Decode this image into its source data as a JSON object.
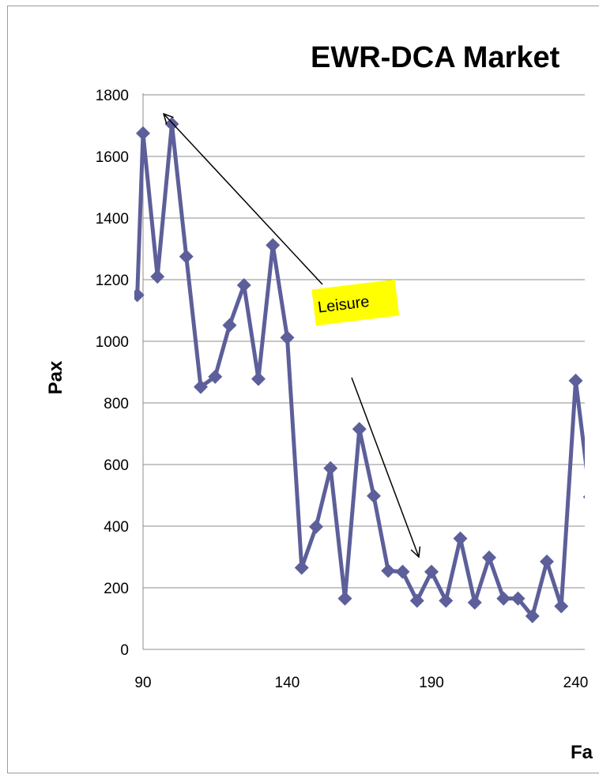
{
  "chart_data": {
    "type": "line",
    "title": "EWR-DCA Market",
    "xlabel": "Fa",
    "ylabel": "Pax",
    "xlim": [
      90,
      245
    ],
    "ylim": [
      0,
      1800
    ],
    "x_ticks": [
      "90",
      "140",
      "190",
      "240"
    ],
    "y_ticks": [
      "0",
      "200",
      "400",
      "600",
      "800",
      "1000",
      "1200",
      "1400",
      "1600",
      "1800"
    ],
    "grid": "horizontal",
    "series": [
      {
        "color": "#5d5f9a",
        "marker": "diamond",
        "points": [
          [
            88,
            1150
          ],
          [
            90,
            1675
          ],
          [
            95,
            1210
          ],
          [
            100,
            1705
          ],
          [
            105,
            1275
          ],
          [
            110,
            852
          ],
          [
            115,
            885
          ],
          [
            120,
            1052
          ],
          [
            125,
            1182
          ],
          [
            130,
            878
          ],
          [
            135,
            1312
          ],
          [
            140,
            1012
          ],
          [
            145,
            265
          ],
          [
            150,
            398
          ],
          [
            155,
            588
          ],
          [
            160,
            165
          ],
          [
            165,
            715
          ],
          [
            170,
            498
          ],
          [
            175,
            255
          ],
          [
            180,
            252
          ],
          [
            185,
            158
          ],
          [
            190,
            252
          ],
          [
            195,
            158
          ],
          [
            200,
            360
          ],
          [
            205,
            152
          ],
          [
            210,
            298
          ],
          [
            215,
            165
          ],
          [
            220,
            165
          ],
          [
            225,
            108
          ],
          [
            230,
            285
          ],
          [
            235,
            140
          ],
          [
            240,
            872
          ],
          [
            245,
            495
          ],
          [
            247,
            660
          ]
        ]
      }
    ],
    "annotations": [
      {
        "text": "Leisure",
        "background": "#ffff00"
      }
    ]
  }
}
